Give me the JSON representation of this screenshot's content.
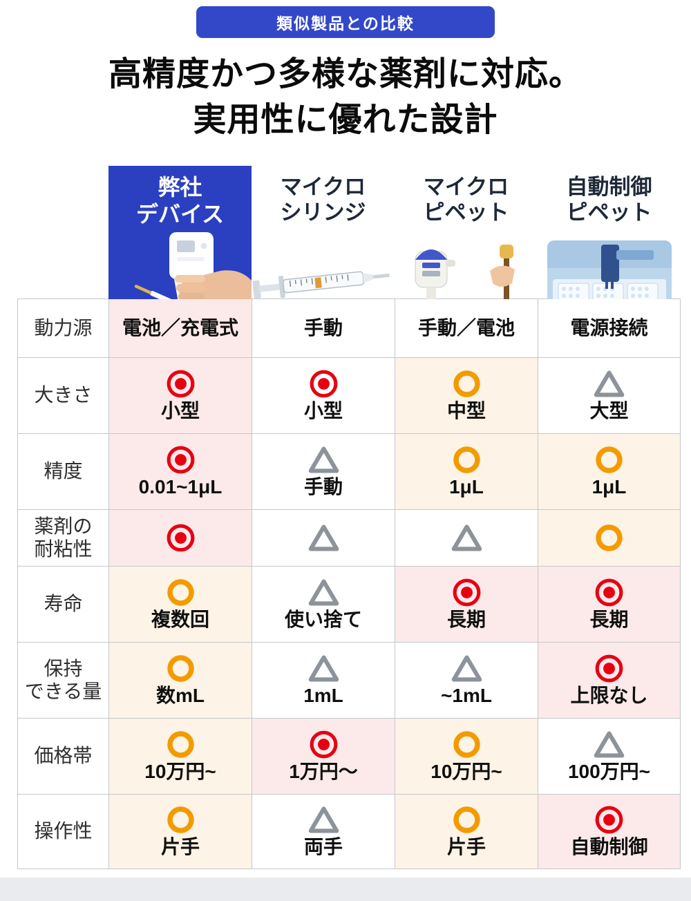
{
  "badge": {
    "label": "類似製品との比較"
  },
  "title": {
    "line1": "高精度かつ多様な薬剤に対応。",
    "line2": "実用性に優れた設計"
  },
  "columns": [
    {
      "name": [
        "弊社",
        "デバイス"
      ],
      "image": "hand-held-dispensing-device",
      "highlighted": true
    },
    {
      "name": [
        "マイクロ",
        "シリンジ"
      ],
      "image": "micro-syringe",
      "highlighted": false
    },
    {
      "name": [
        "マイクロ",
        "ピペット"
      ],
      "image": "micro-pipette",
      "highlighted": false
    },
    {
      "name": [
        "自動制御",
        "ピペット"
      ],
      "image": "automated-pipetting-machine",
      "highlighted": false
    }
  ],
  "rows": [
    {
      "label": [
        "動力源"
      ],
      "cells": [
        {
          "text": "電池／充電式",
          "mark": null,
          "bg": "pink"
        },
        {
          "text": "手動",
          "mark": null,
          "bg": "white"
        },
        {
          "text": "手動／電池",
          "mark": null,
          "bg": "white"
        },
        {
          "text": "電源接続",
          "mark": null,
          "bg": "white"
        }
      ]
    },
    {
      "label": [
        "大きさ"
      ],
      "cells": [
        {
          "text": "小型",
          "mark": "double-circle",
          "bg": "pink"
        },
        {
          "text": "小型",
          "mark": "double-circle",
          "bg": "white"
        },
        {
          "text": "中型",
          "mark": "circle",
          "bg": "cream"
        },
        {
          "text": "大型",
          "mark": "triangle",
          "bg": "white"
        }
      ]
    },
    {
      "label": [
        "精度"
      ],
      "cells": [
        {
          "text": "0.01~1μL",
          "mark": "double-circle",
          "bg": "pink"
        },
        {
          "text": "手動",
          "mark": "triangle",
          "bg": "white"
        },
        {
          "text": "1μL",
          "mark": "circle",
          "bg": "cream"
        },
        {
          "text": "1μL",
          "mark": "circle",
          "bg": "cream"
        }
      ]
    },
    {
      "label": [
        "薬剤の",
        "耐粘性"
      ],
      "cells": [
        {
          "text": "",
          "mark": "double-circle",
          "bg": "pink"
        },
        {
          "text": "",
          "mark": "triangle",
          "bg": "white"
        },
        {
          "text": "",
          "mark": "triangle",
          "bg": "white"
        },
        {
          "text": "",
          "mark": "circle",
          "bg": "cream"
        }
      ]
    },
    {
      "label": [
        "寿命"
      ],
      "cells": [
        {
          "text": "複数回",
          "mark": "circle",
          "bg": "cream"
        },
        {
          "text": "使い捨て",
          "mark": "triangle",
          "bg": "white"
        },
        {
          "text": "長期",
          "mark": "double-circle",
          "bg": "pink"
        },
        {
          "text": "長期",
          "mark": "double-circle",
          "bg": "pink"
        }
      ]
    },
    {
      "label": [
        "保持",
        "できる量"
      ],
      "cells": [
        {
          "text": "数mL",
          "mark": "circle",
          "bg": "cream"
        },
        {
          "text": "1mL",
          "mark": "triangle",
          "bg": "white"
        },
        {
          "text": "~1mL",
          "mark": "triangle",
          "bg": "white"
        },
        {
          "text": "上限なし",
          "mark": "double-circle",
          "bg": "pink"
        }
      ]
    },
    {
      "label": [
        "価格帯"
      ],
      "cells": [
        {
          "text": "10万円~",
          "mark": "circle",
          "bg": "cream"
        },
        {
          "text": "1万円〜",
          "mark": "double-circle",
          "bg": "pink"
        },
        {
          "text": "10万円~",
          "mark": "circle",
          "bg": "cream"
        },
        {
          "text": "100万円~",
          "mark": "triangle",
          "bg": "white"
        }
      ]
    },
    {
      "label": [
        "操作性"
      ],
      "cells": [
        {
          "text": "片手",
          "mark": "circle",
          "bg": "cream"
        },
        {
          "text": "両手",
          "mark": "triangle",
          "bg": "white"
        },
        {
          "text": "片手",
          "mark": "circle",
          "bg": "cream"
        },
        {
          "text": "自動制御",
          "mark": "double-circle",
          "bg": "pink"
        }
      ]
    }
  ],
  "colors": {
    "badge_bg": "#3347c9",
    "highlight_column_bg": "#2b3fc1",
    "mark_best_red": "#e60012",
    "mark_good_orange": "#f29b00",
    "mark_fair_gray": "#8d939b",
    "cell_pink": "#fce9e9",
    "cell_cream": "#fdf3e6",
    "border": "#c4c8cc",
    "footer_strip": "#e9ebee"
  }
}
